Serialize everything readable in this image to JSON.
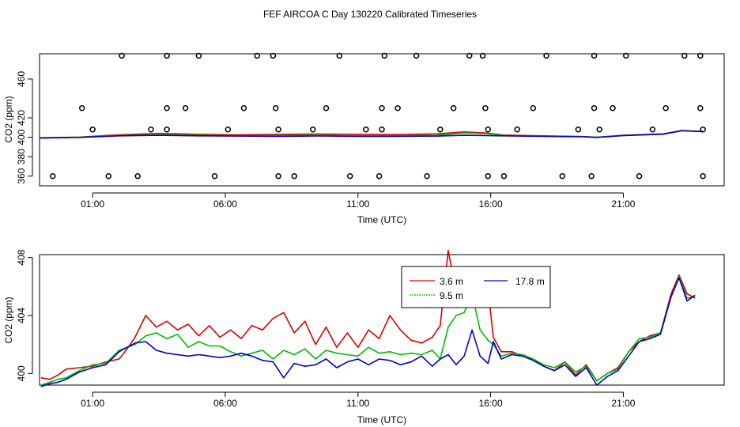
{
  "title": "FEF AIRCOA C  Day 130220  Calibrated Timeseries",
  "colors": {
    "red": "#dd0000",
    "green": "#00bb00",
    "blue": "#0000cc",
    "axis": "#000000"
  },
  "chart_data": [
    {
      "type": "scatter+line",
      "title": "FEF AIRCOA C  Day 130220  Calibrated Timeseries",
      "xlabel": "Time (UTC)",
      "ylabel": "CO2 (ppm)",
      "xlim": [
        -1.0,
        24.8
      ],
      "ylim": [
        350,
        486
      ],
      "xticks": [
        1,
        6,
        11,
        16,
        21
      ],
      "xtick_labels": [
        "01:00",
        "06:00",
        "11:00",
        "16:00",
        "21:00"
      ],
      "yticks": [
        380,
        420,
        460
      ],
      "ytick_labels": [
        "380",
        "420",
        "460"
      ],
      "extra_yticks": [
        360,
        400
      ],
      "extra_ytick_labels": [
        "360",
        "400"
      ],
      "grid": false,
      "legend": "none",
      "points": {
        "y360": [
          -0.5,
          1.6,
          2.7,
          5.6,
          8.0,
          8.6,
          10.7,
          11.8,
          13.6,
          15.9,
          16.5,
          18.7,
          19.8,
          21.6,
          24.0
        ],
        "y408": [
          1.0,
          3.2,
          3.8,
          6.1,
          8.0,
          9.3,
          11.3,
          11.9,
          14.1,
          15.9,
          17.0,
          19.3,
          20.1,
          22.1,
          24.0
        ],
        "y430": [
          0.6,
          3.8,
          4.5,
          6.7,
          7.9,
          9.8,
          11.9,
          12.5,
          14.6,
          15.8,
          17.6,
          19.9,
          20.6,
          22.6,
          23.9
        ],
        "y484": [
          2.1,
          3.8,
          5.0,
          7.2,
          7.8,
          10.3,
          12.0,
          13.2,
          15.2,
          15.7,
          18.1,
          19.9,
          21.1,
          23.3,
          23.9
        ]
      },
      "series": [
        {
          "name": "3.6 m",
          "color": "#dd0000",
          "x": [
            -1.0,
            0.5,
            2.0,
            3.5,
            5.0,
            6.5,
            8.0,
            9.5,
            11.0,
            12.5,
            14.0,
            15.0,
            15.8,
            16.5,
            18.0,
            19.5,
            20.0,
            21.0,
            22.5,
            23.2,
            24.0
          ],
          "values": [
            399.5,
            400.2,
            402.5,
            404.0,
            403.0,
            402.5,
            403.0,
            403.3,
            403.0,
            402.8,
            403.5,
            405.5,
            404.5,
            402.3,
            401.5,
            400.7,
            400.0,
            402.0,
            403.5,
            407.0,
            406.0
          ]
        },
        {
          "name": "9.5 m",
          "color": "#00bb00",
          "x": [
            -1.0,
            0.5,
            2.0,
            3.5,
            5.0,
            6.5,
            8.0,
            9.5,
            11.0,
            12.5,
            14.0,
            15.0,
            15.8,
            16.5,
            18.0,
            19.5,
            20.0,
            21.0,
            22.5,
            23.2,
            24.0
          ],
          "values": [
            399.3,
            400.0,
            401.8,
            402.5,
            402.0,
            401.5,
            401.8,
            402.0,
            401.5,
            401.5,
            402.0,
            404.5,
            403.8,
            401.8,
            401.2,
            400.5,
            400.0,
            401.8,
            403.3,
            406.8,
            405.8
          ]
        },
        {
          "name": "17.8 m",
          "color": "#0000cc",
          "x": [
            -1.0,
            0.5,
            2.0,
            3.5,
            5.0,
            6.5,
            8.0,
            9.5,
            11.0,
            12.5,
            14.0,
            15.0,
            15.8,
            16.5,
            18.0,
            19.5,
            20.0,
            21.0,
            22.5,
            23.2,
            24.0
          ],
          "values": [
            399.2,
            399.8,
            401.5,
            402.0,
            401.5,
            401.2,
            401.0,
            401.3,
            401.0,
            401.0,
            401.2,
            402.0,
            401.8,
            401.5,
            401.0,
            400.5,
            399.8,
            401.8,
            403.2,
            406.8,
            405.8
          ]
        }
      ]
    },
    {
      "type": "line",
      "title": "",
      "xlabel": "Time (UTC)",
      "ylabel": "CO2 (ppm)",
      "xlim": [
        -1.0,
        24.8
      ],
      "ylim": [
        399.2,
        408.2
      ],
      "xticks": [
        1,
        6,
        11,
        16,
        21
      ],
      "xtick_labels": [
        "01:00",
        "06:00",
        "11:00",
        "16:00",
        "21:00"
      ],
      "yticks": [
        400,
        404,
        408
      ],
      "ytick_labels": [
        "400",
        "404",
        "408"
      ],
      "grid": false,
      "legend": "top-center",
      "series": [
        {
          "name": "3.6 m",
          "color": "#dd0000",
          "x": [
            -0.95,
            -0.6,
            -0.3,
            0.0,
            0.5,
            1.0,
            1.5,
            2.0,
            2.3,
            2.6,
            3.0,
            3.4,
            3.8,
            4.2,
            4.6,
            5.0,
            5.4,
            5.8,
            6.2,
            6.6,
            7.0,
            7.4,
            7.8,
            8.2,
            8.6,
            9.0,
            9.4,
            9.8,
            10.2,
            10.6,
            11.0,
            11.4,
            11.8,
            12.2,
            12.6,
            13.0,
            13.4,
            13.8,
            14.1,
            14.4,
            14.7,
            15.0,
            15.3,
            15.6,
            15.9,
            16.1,
            16.4,
            16.8,
            17.2,
            17.6,
            18.0,
            18.4,
            18.8,
            19.2,
            19.6,
            20.0,
            20.4,
            20.8,
            21.2,
            21.6,
            22.0,
            22.4,
            22.8,
            23.1,
            23.4,
            23.7
          ],
          "values": [
            399.7,
            399.6,
            399.9,
            400.3,
            400.4,
            400.5,
            400.8,
            401.0,
            401.7,
            402.5,
            404.0,
            403.2,
            403.6,
            403.0,
            403.4,
            402.6,
            403.3,
            402.5,
            403.0,
            402.4,
            403.3,
            403.0,
            403.8,
            404.2,
            402.8,
            403.6,
            402.0,
            403.2,
            401.8,
            402.8,
            401.8,
            403.0,
            402.4,
            404.0,
            403.0,
            402.3,
            402.1,
            402.5,
            403.3,
            408.5,
            405.5,
            405.8,
            405.9,
            406.3,
            405.8,
            402.5,
            401.5,
            401.5,
            401.2,
            401.0,
            400.5,
            400.2,
            400.8,
            399.9,
            400.6,
            399.5,
            400.0,
            400.4,
            401.5,
            402.2,
            402.6,
            402.8,
            405.5,
            406.8,
            405.5,
            405.2
          ]
        },
        {
          "name": "9.5 m",
          "color": "#00bb00",
          "x": [
            -0.95,
            -0.6,
            -0.3,
            0.0,
            0.5,
            1.0,
            1.5,
            2.0,
            2.3,
            2.6,
            3.0,
            3.4,
            3.8,
            4.2,
            4.6,
            5.0,
            5.4,
            5.8,
            6.2,
            6.6,
            7.0,
            7.4,
            7.8,
            8.2,
            8.6,
            9.0,
            9.4,
            9.8,
            10.2,
            10.6,
            11.0,
            11.4,
            11.8,
            12.2,
            12.6,
            13.0,
            13.4,
            13.8,
            14.1,
            14.4,
            14.7,
            15.0,
            15.3,
            15.6,
            15.9,
            16.1,
            16.4,
            16.8,
            17.2,
            17.6,
            18.0,
            18.4,
            18.8,
            19.2,
            19.6,
            20.0,
            20.4,
            20.8,
            21.2,
            21.6,
            22.0,
            22.4,
            22.8,
            23.1,
            23.4,
            23.7
          ],
          "values": [
            399.2,
            399.4,
            399.6,
            399.7,
            400.2,
            400.6,
            400.7,
            401.6,
            401.8,
            402.0,
            402.6,
            402.8,
            402.4,
            402.7,
            401.8,
            402.2,
            401.9,
            401.9,
            401.5,
            401.2,
            401.4,
            401.6,
            401.0,
            401.6,
            401.3,
            401.7,
            401.0,
            401.6,
            401.4,
            401.3,
            401.2,
            401.8,
            401.4,
            401.5,
            401.3,
            401.4,
            401.3,
            401.6,
            401.0,
            403.2,
            404.0,
            404.2,
            405.5,
            403.0,
            402.3,
            402.0,
            401.2,
            401.4,
            401.3,
            401.0,
            400.6,
            400.4,
            400.8,
            400.1,
            400.5,
            399.5,
            400.0,
            400.3,
            401.5,
            402.4,
            402.5,
            402.8,
            405.3,
            406.7,
            405.2,
            405.3
          ]
        },
        {
          "name": "17.8 m",
          "color": "#0000cc",
          "x": [
            -0.95,
            -0.6,
            -0.3,
            0.0,
            0.5,
            1.0,
            1.5,
            2.0,
            2.3,
            2.6,
            3.0,
            3.4,
            3.8,
            4.2,
            4.6,
            5.0,
            5.4,
            5.8,
            6.2,
            6.6,
            7.0,
            7.4,
            7.8,
            8.2,
            8.6,
            9.0,
            9.4,
            9.8,
            10.2,
            10.6,
            11.0,
            11.4,
            11.8,
            12.2,
            12.6,
            13.0,
            13.4,
            13.8,
            14.1,
            14.4,
            14.7,
            15.0,
            15.3,
            15.6,
            15.9,
            16.1,
            16.4,
            16.8,
            17.2,
            17.6,
            18.0,
            18.4,
            18.8,
            19.2,
            19.6,
            20.0,
            20.4,
            20.8,
            21.2,
            21.6,
            22.0,
            22.4,
            22.8,
            23.1,
            23.4,
            23.7
          ],
          "values": [
            399.1,
            399.3,
            399.4,
            399.6,
            400.1,
            400.4,
            400.6,
            401.5,
            401.8,
            402.1,
            402.2,
            401.6,
            401.4,
            401.3,
            401.2,
            401.3,
            401.2,
            401.1,
            401.2,
            401.4,
            401.2,
            400.9,
            400.8,
            399.7,
            400.7,
            400.5,
            400.6,
            401.0,
            400.4,
            400.8,
            401.0,
            400.6,
            401.0,
            400.9,
            400.6,
            400.8,
            401.2,
            400.5,
            401.0,
            401.3,
            400.6,
            401.2,
            403.0,
            401.2,
            400.7,
            402.2,
            401.0,
            401.3,
            401.2,
            400.9,
            400.5,
            400.2,
            400.6,
            399.8,
            400.4,
            399.2,
            399.8,
            400.2,
            401.2,
            402.2,
            402.4,
            402.7,
            405.3,
            406.6,
            405.0,
            405.4
          ]
        }
      ]
    }
  ]
}
